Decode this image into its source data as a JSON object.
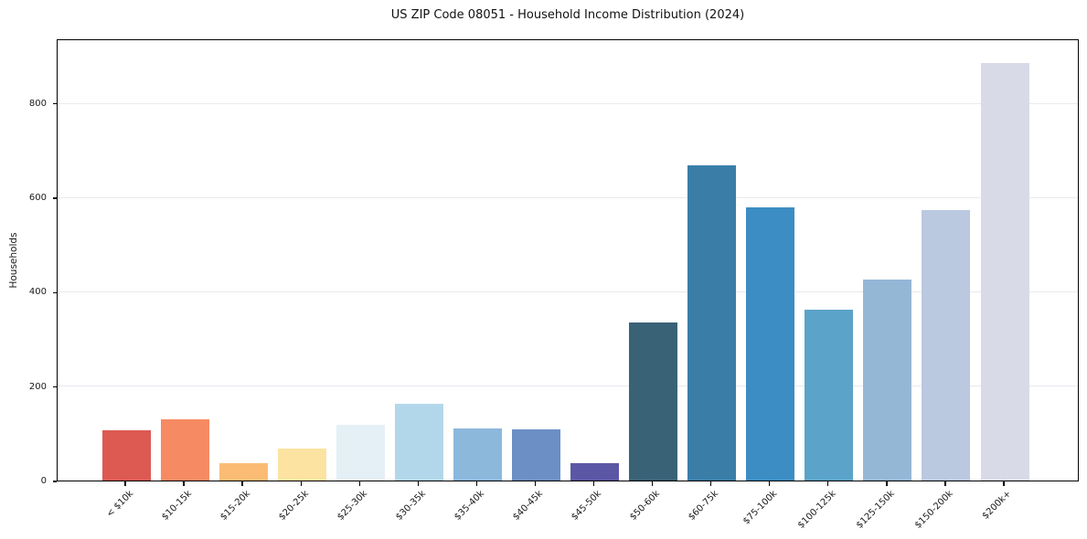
{
  "chart_data": {
    "type": "bar",
    "title": "US ZIP Code 08051 - Household Income Distribution (2024)",
    "xlabel": "",
    "ylabel": "Households",
    "categories": [
      "< $10k",
      "$10-15k",
      "$15-20k",
      "$20-25k",
      "$25-30k",
      "$30-35k",
      "$35-40k",
      "$40-45k",
      "$45-50k",
      "$50-60k",
      "$60-75k",
      "$75-100k",
      "$100-125k",
      "$125-150k",
      "$150-200k",
      "$200k+"
    ],
    "values": [
      107,
      130,
      37,
      68,
      118,
      163,
      110,
      109,
      36,
      337,
      671,
      581,
      363,
      428,
      575,
      889
    ],
    "bar_colors": [
      "#dc5a52",
      "#f68a62",
      "#fabc74",
      "#fce3a1",
      "#e4f0f6",
      "#b3d7ea",
      "#8cb8dc",
      "#6c8fc5",
      "#5c57a5",
      "#3a6277",
      "#3a7ea8",
      "#3c8dc3",
      "#5ba3c8",
      "#95b7d6",
      "#bac8e0",
      "#d9dae8"
    ],
    "yticks": [
      0,
      200,
      400,
      600,
      800
    ],
    "ylim": [
      0,
      937
    ],
    "grid": "horizontal-light",
    "legend_position": "none",
    "x_tick_rotation_deg": 45
  },
  "style": {
    "background": "#ffffff",
    "spine_color": "#000000",
    "grid_color": "#e9e9ef",
    "text_color": "#191919"
  }
}
